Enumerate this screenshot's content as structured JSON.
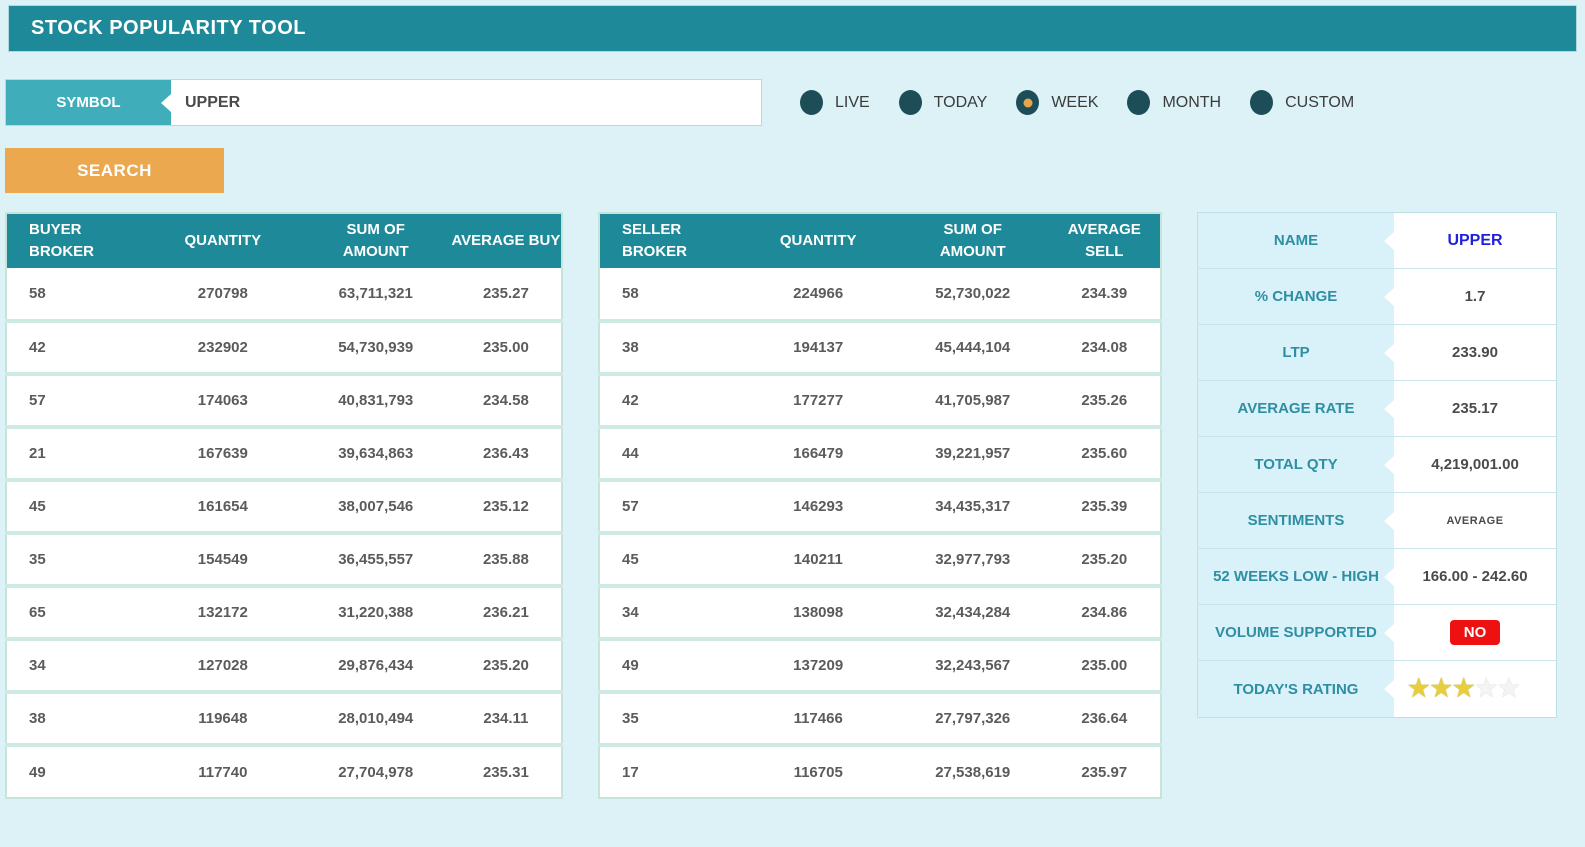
{
  "app": {
    "title": "STOCK POPULARITY TOOL"
  },
  "search": {
    "symbol_label": "SYMBOL",
    "symbol_value": "UPPER",
    "button_label": "SEARCH"
  },
  "filters": {
    "selected": "WEEK",
    "selected_index": 2,
    "options": [
      {
        "label": "LIVE"
      },
      {
        "label": "TODAY"
      },
      {
        "label": "WEEK"
      },
      {
        "label": "MONTH"
      },
      {
        "label": "CUSTOM"
      }
    ]
  },
  "buyer_table": {
    "headers": [
      "BUYER BROKER",
      "QUANTITY",
      "SUM OF\nAMOUNT",
      "AVERAGE BUY"
    ],
    "rows": [
      [
        "58",
        "270798",
        "63,711,321",
        "235.27"
      ],
      [
        "42",
        "232902",
        "54,730,939",
        "235.00"
      ],
      [
        "57",
        "174063",
        "40,831,793",
        "234.58"
      ],
      [
        "21",
        "167639",
        "39,634,863",
        "236.43"
      ],
      [
        "45",
        "161654",
        "38,007,546",
        "235.12"
      ],
      [
        "35",
        "154549",
        "36,455,557",
        "235.88"
      ],
      [
        "65",
        "132172",
        "31,220,388",
        "236.21"
      ],
      [
        "34",
        "127028",
        "29,876,434",
        "235.20"
      ],
      [
        "38",
        "119648",
        "28,010,494",
        "234.11"
      ],
      [
        "49",
        "117740",
        "27,704,978",
        "235.31"
      ]
    ]
  },
  "seller_table": {
    "headers": [
      "SELLER\nBROKER",
      "QUANTITY",
      "SUM OF\nAMOUNT",
      "AVERAGE SELL"
    ],
    "rows": [
      [
        "58",
        "224966",
        "52,730,022",
        "234.39"
      ],
      [
        "38",
        "194137",
        "45,444,104",
        "234.08"
      ],
      [
        "42",
        "177277",
        "41,705,987",
        "235.26"
      ],
      [
        "44",
        "166479",
        "39,221,957",
        "235.60"
      ],
      [
        "57",
        "146293",
        "34,435,317",
        "235.39"
      ],
      [
        "45",
        "140211",
        "32,977,793",
        "235.20"
      ],
      [
        "34",
        "138098",
        "32,434,284",
        "234.86"
      ],
      [
        "49",
        "137209",
        "32,243,567",
        "235.00"
      ],
      [
        "35",
        "117466",
        "27,797,326",
        "236.64"
      ],
      [
        "17",
        "116705",
        "27,538,619",
        "235.97"
      ]
    ]
  },
  "summary": {
    "rows": [
      {
        "label": "NAME",
        "value": "UPPER",
        "type": "name"
      },
      {
        "label": "% CHANGE",
        "value": "1.7",
        "type": "text"
      },
      {
        "label": "LTP",
        "value": "233.90",
        "type": "text"
      },
      {
        "label": "AVERAGE RATE",
        "value": "235.17",
        "type": "text"
      },
      {
        "label": "TOTAL QTY",
        "value": "4,219,001.00",
        "type": "text"
      },
      {
        "label": "SENTIMENTS",
        "value": "AVERAGE",
        "type": "small"
      },
      {
        "label": "52 WEEKS LOW - HIGH",
        "value": "166.00 - 242.60",
        "type": "text"
      },
      {
        "label": "VOLUME SUPPORTED",
        "value": "NO",
        "type": "badge"
      },
      {
        "label": "TODAY'S RATING",
        "type": "stars",
        "rating": 3,
        "max": 5
      }
    ]
  },
  "colors": {
    "header_teal": "#1e8a99",
    "tab_teal": "#3fadba",
    "button_orange": "#eca84f",
    "radio_dark": "#1d4d57",
    "radio_dot_orange": "#e9a54a",
    "badge_red": "#ee1111",
    "star_gold": "#e7ce3c",
    "name_blue": "#2121d9",
    "page_background": "#dcf2f7"
  }
}
